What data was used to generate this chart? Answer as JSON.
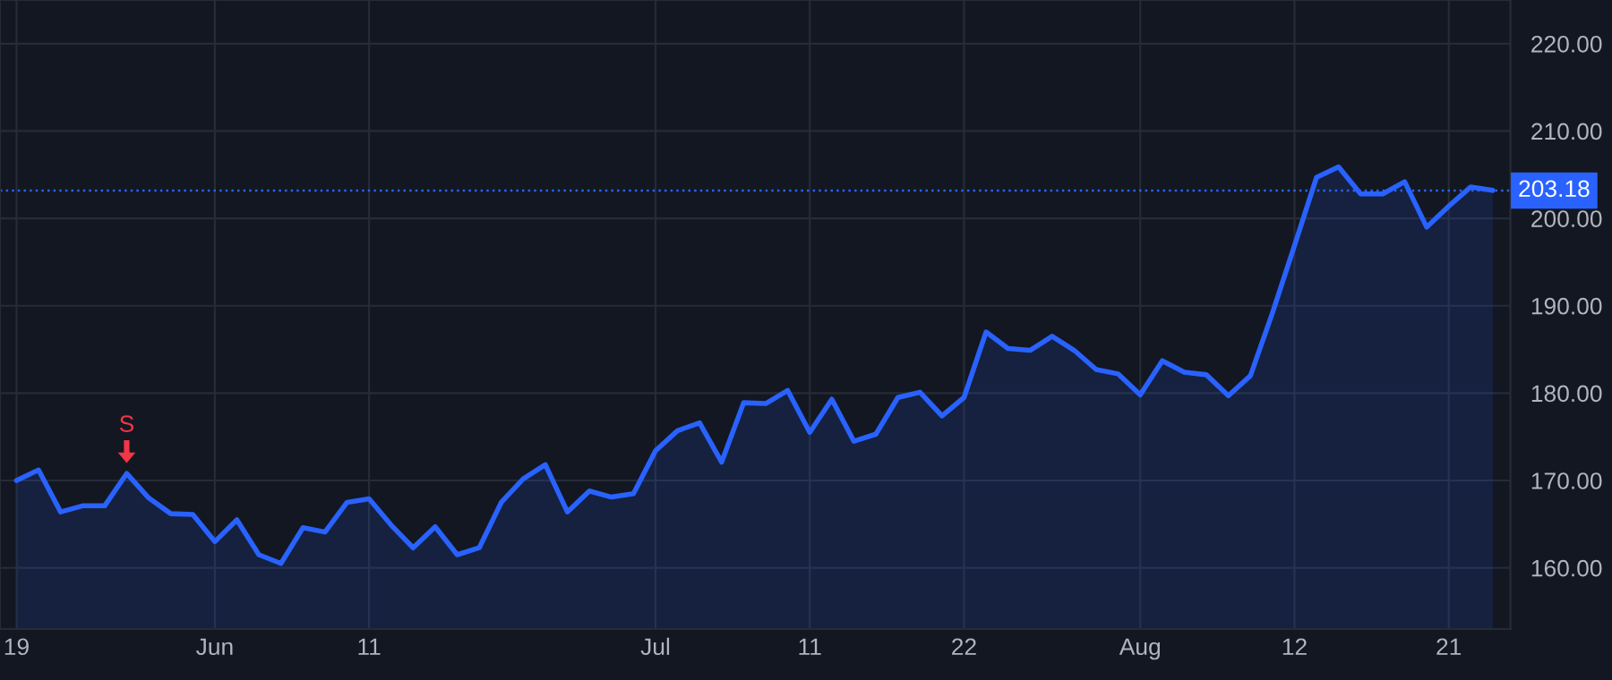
{
  "chart_data": {
    "type": "area",
    "categories": [
      "19",
      null,
      null,
      null,
      null,
      null,
      null,
      null,
      null,
      "Jun",
      null,
      null,
      null,
      null,
      null,
      null,
      "11",
      null,
      null,
      null,
      null,
      null,
      null,
      null,
      null,
      null,
      null,
      null,
      null,
      "Jul",
      null,
      null,
      null,
      null,
      null,
      null,
      "11",
      null,
      null,
      null,
      null,
      null,
      null,
      "22",
      null,
      null,
      null,
      null,
      null,
      null,
      null,
      "Aug",
      null,
      null,
      null,
      null,
      null,
      null,
      "12",
      null,
      null,
      null,
      null,
      null,
      null,
      "21",
      null,
      null
    ],
    "series": [
      {
        "color": "#2962ff",
        "values": [
          170.0,
          171.2,
          166.4,
          167.1,
          167.1,
          170.8,
          168.0,
          166.2,
          166.1,
          163.0,
          165.5,
          161.5,
          160.5,
          164.6,
          164.1,
          167.5,
          167.9,
          164.9,
          162.3,
          164.7,
          161.5,
          162.3,
          167.5,
          170.2,
          171.8,
          166.4,
          168.8,
          168.1,
          168.5,
          173.4,
          175.7,
          176.6,
          172.1,
          178.9,
          178.8,
          180.3,
          175.5,
          179.3,
          174.5,
          175.3,
          179.5,
          180.1,
          177.4,
          179.5,
          187.0,
          185.1,
          184.9,
          186.5,
          184.9,
          182.7,
          182.2,
          179.8,
          183.7,
          182.4,
          182.1,
          179.7,
          182.0,
          189.2,
          196.9,
          204.7,
          205.9,
          202.8,
          202.8,
          204.2,
          199.0,
          201.4,
          203.6,
          203.2
        ]
      }
    ],
    "ylim": [
      153,
      225
    ],
    "yticks": [
      {
        "value": 160,
        "label": "160.00"
      },
      {
        "value": 170,
        "label": "170.00"
      },
      {
        "value": 180,
        "label": "180.00"
      },
      {
        "value": 190,
        "label": "190.00"
      },
      {
        "value": 200,
        "label": "200.00"
      },
      {
        "value": 210,
        "label": "210.00"
      },
      {
        "value": 220,
        "label": "220.00"
      }
    ],
    "ref_lines": [
      {
        "axis": "y",
        "value": 203.18,
        "label": "203.18",
        "color": "#2962ff",
        "line_style": "dotted"
      }
    ],
    "annotations": [
      {
        "text": "S",
        "y": 170.8
      }
    ],
    "grid": true,
    "legend": false,
    "marker": "none",
    "line_style": "solid"
  }
}
